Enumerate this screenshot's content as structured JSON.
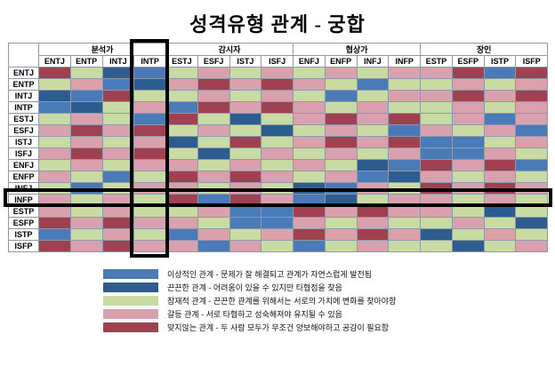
{
  "chart_data": {
    "type": "heatmap",
    "title": "성격유형 관계 - 궁합",
    "col_groups": [
      {
        "label": "분석가",
        "span": 4
      },
      {
        "label": "감시자",
        "span": 4
      },
      {
        "label": "협상가",
        "span": 4
      },
      {
        "label": "장인",
        "span": 4
      }
    ],
    "col_labels": [
      "ENTJ",
      "ENTP",
      "INTJ",
      "INTP",
      "ESTJ",
      "ESFJ",
      "ISTJ",
      "ISFJ",
      "ENFJ",
      "ENFP",
      "INFJ",
      "INFP",
      "ESTP",
      "ESFP",
      "ISTP",
      "ISFP"
    ],
    "row_labels": [
      "ENTJ",
      "ENTP",
      "INTJ",
      "INTP",
      "ESTJ",
      "ESFJ",
      "ISTJ",
      "ISFJ",
      "ENFJ",
      "ENFP",
      "INFJ",
      "INFP",
      "ESTP",
      "ESFP",
      "ISTP",
      "ISFP"
    ],
    "matrix": [
      "XPSIPCPCPCPCCXIX",
      "PCISCXCXCPIPPCPC",
      "SIXPPCPCPIPCCXCX",
      "ISPCIXCXCPCPPCPC",
      "PCPIXPSPCXCXPCIC",
      "CXCXPCPSPCPICPCI",
      "PCPCSPXPCXCXIIPC",
      "CXCXPSPCPCPCIICP",
      "PCPCCPCPCPSIXCXI",
      "CPIPXCXCPCISCPCP",
      "PIPCCPCPSICPXCXC",
      "CPCPXIXCISPCCPCP",
      "CPCPPCIIXCXCCPSP",
      "XCXCCPIICPCPPCPS",
      "IPCPICPCXCXCSPCP",
      "XCXCCICPIPCPPSPC"
    ],
    "legend": [
      {
        "code": "I",
        "color": "#4a7ab8",
        "label": "이상적인 관계 - 문제가 잘 해결되고 관계가 자연스럽게 발전됨"
      },
      {
        "code": "S",
        "color": "#2d5c8e",
        "label": "끈끈한 관계 - 어려움이 있을 수 있지만 타협점을 찾음"
      },
      {
        "code": "P",
        "color": "#c7dba2",
        "label": "잠재적 관계 - 끈끈한 관계를 위해서는 서로의 가치에 변화를 찾아야함"
      },
      {
        "code": "C",
        "color": "#d9a0ad",
        "label": "갈등 관계 - 서로 타협하고 성숙해져야 유지될 수 있음"
      },
      {
        "code": "X",
        "color": "#a04152",
        "label": "맞지않는 관계 - 두 사람 모두가 무조건 양보해야하고 공감이 필요함"
      }
    ],
    "highlight": {
      "column": "INTP",
      "row": "INFP"
    }
  }
}
